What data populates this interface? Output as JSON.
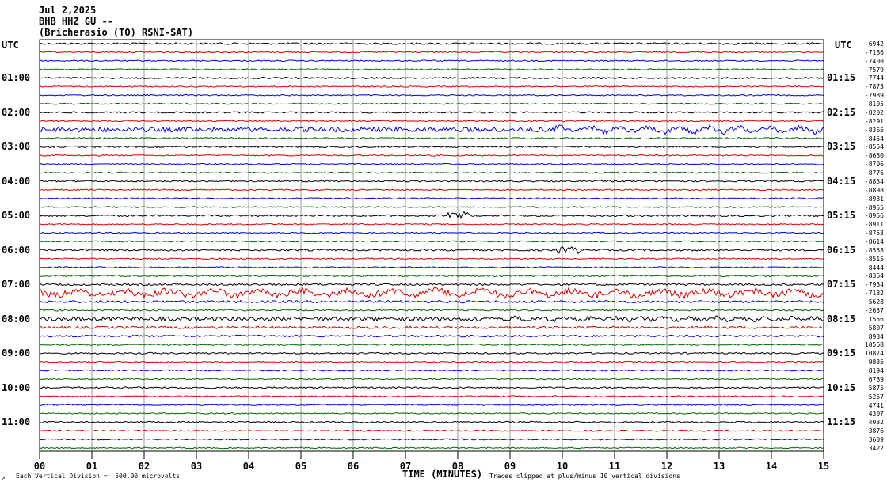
{
  "header": {
    "date": "Jul 2,2025",
    "station": "BHB HHZ GU --",
    "location": "(Bricherasio (TO) RSNI-SAT)"
  },
  "left_axis_title": "UTC",
  "right_axis_title": "UTC",
  "left_hour_labels": [
    "01:00",
    "02:00",
    "03:00",
    "04:00",
    "05:00",
    "06:00",
    "07:00",
    "08:00",
    "09:00",
    "10:00",
    "11:00"
  ],
  "right_hour_labels": [
    "01:15",
    "02:15",
    "03:15",
    "04:15",
    "05:15",
    "06:15",
    "07:15",
    "08:15",
    "09:15",
    "10:15",
    "11:15"
  ],
  "footer": {
    "scale_note": "Each Vertical Division =  500.00 microvolts",
    "xlabel": "TIME (MINUTES)",
    "clip_note": "Traces clipped at plus/minus 10 vertical divisions",
    "corner_mark": "↗"
  },
  "colors": {
    "black": "#000000",
    "red": "#d00000",
    "blue": "#0000d0",
    "green": "#006400",
    "grid": "#808080"
  },
  "chart_data": {
    "type": "line",
    "title": "BHB HHZ GU --",
    "xlabel": "TIME (MINUTES)",
    "ylabel": "UTC",
    "xlim": [
      0,
      15
    ],
    "x_ticks": [
      "00",
      "01",
      "02",
      "03",
      "04",
      "05",
      "06",
      "07",
      "08",
      "09",
      "10",
      "11",
      "12",
      "13",
      "14",
      "15"
    ],
    "grid": true,
    "trace_minutes_per_line": 15,
    "trace_colors": [
      "black",
      "red",
      "blue",
      "green"
    ],
    "right_offsets": [
      "-6942",
      "-7186",
      "-7400",
      "-7579",
      "-7744",
      "-7873",
      "-7989",
      "-8105",
      "-8202",
      "-8291",
      "-8365",
      "-8454",
      "-8554",
      "-8630",
      "-8706",
      "-8776",
      "-8854",
      "-8898",
      "-8931",
      "-8955",
      "-8956",
      "-8911",
      "-8753",
      "-8614",
      "-8558",
      "-8515",
      "-8444",
      "-8364",
      "-7954",
      "-7132",
      "-5628",
      "-2637",
      "1556",
      "5807",
      "8934",
      "10568",
      "10874",
      "9835",
      "8194",
      "6789",
      "5875",
      "5257",
      "4741",
      "4307",
      "4032",
      "3876",
      "3609",
      "3422"
    ],
    "amplitude": [
      1.2,
      0.8,
      0.8,
      0.8,
      1.0,
      0.8,
      0.8,
      0.8,
      1.0,
      0.8,
      3.0,
      1.0,
      1.0,
      0.8,
      0.8,
      0.8,
      1.0,
      0.8,
      0.8,
      0.8,
      1.2,
      0.8,
      0.8,
      0.8,
      1.2,
      0.8,
      0.8,
      1.0,
      1.2,
      4.0,
      1.5,
      1.0,
      2.5,
      1.5,
      1.2,
      1.0,
      1.0,
      0.8,
      0.8,
      0.8,
      1.0,
      0.8,
      0.8,
      0.8,
      1.0,
      0.8,
      0.8,
      0.8
    ],
    "events": [
      {
        "trace": 20,
        "minute": 8.0,
        "label": "05:00 burst"
      },
      {
        "trace": 24,
        "minute": 10.1,
        "label": "06:00 burst"
      }
    ]
  }
}
